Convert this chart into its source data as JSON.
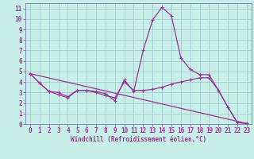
{
  "xlabel": "Windchill (Refroidissement éolien,°C)",
  "bg_color": "#c8eee8",
  "grid_color": "#a0cccc",
  "line_color": "#993399",
  "spine_color": "#7777aa",
  "xlim": [
    -0.5,
    23.5
  ],
  "ylim": [
    0,
    11.5
  ],
  "xticks": [
    0,
    1,
    2,
    3,
    4,
    5,
    6,
    7,
    8,
    9,
    10,
    11,
    12,
    13,
    14,
    15,
    16,
    17,
    18,
    19,
    20,
    21,
    22,
    23
  ],
  "yticks": [
    0,
    1,
    2,
    3,
    4,
    5,
    6,
    7,
    8,
    9,
    10,
    11
  ],
  "line1": {
    "x": [
      0,
      1,
      2,
      3,
      4,
      5,
      6,
      7,
      8,
      9,
      10,
      11,
      12,
      13,
      14,
      15,
      16,
      17,
      18,
      19,
      20,
      21,
      22,
      23
    ],
    "y": [
      4.8,
      3.9,
      3.1,
      3.0,
      2.6,
      3.2,
      3.2,
      3.1,
      2.9,
      2.2,
      4.2,
      3.1,
      7.0,
      9.9,
      11.1,
      10.3,
      6.3,
      5.2,
      4.7,
      4.7,
      3.2,
      1.6,
      0.15,
      0.05
    ]
  },
  "line2": {
    "x": [
      0,
      1,
      2,
      3,
      4,
      5,
      6,
      7,
      8,
      9,
      10,
      11,
      12,
      13,
      14,
      15,
      16,
      17,
      18,
      19,
      20,
      21,
      22,
      23
    ],
    "y": [
      4.8,
      3.9,
      3.1,
      2.8,
      2.5,
      3.2,
      3.2,
      3.0,
      2.7,
      2.5,
      4.0,
      3.2,
      3.2,
      3.3,
      3.5,
      3.8,
      4.0,
      4.2,
      4.4,
      4.4,
      3.2,
      1.6,
      0.15,
      0.05
    ]
  },
  "line3": {
    "x": [
      0,
      23
    ],
    "y": [
      4.8,
      0.05
    ]
  }
}
